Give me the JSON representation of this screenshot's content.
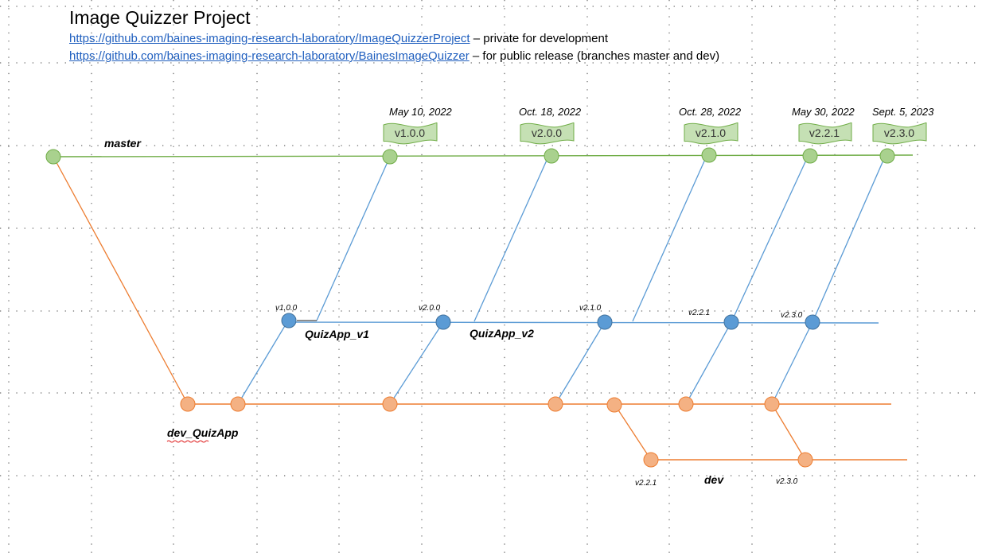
{
  "title": "Image Quizzer Project",
  "links": [
    {
      "url": "https://github.com/baines-imaging-research-laboratory/ImageQuizzerProject",
      "note": " – private for development"
    },
    {
      "url": "https://github.com/baines-imaging-research-laboratory/BainesImageQuizzer",
      "note": " – for public release (branches master and dev)"
    }
  ],
  "colors": {
    "master": "#70ad47",
    "master_fill": "#a9d18e",
    "quizapp": "#5b9bd5",
    "quizapp_fill": "#5b9bd5",
    "dev": "#ed7d31",
    "dev_fill": "#f4b183",
    "tag_fill": "#c5e0b4"
  },
  "branches": {
    "master": "master",
    "dev_quizapp": "dev_QuizApp",
    "quizapp_v1": "QuizApp_v1",
    "quizapp_v2": "QuizApp_v2",
    "dev": "dev"
  },
  "releases": [
    {
      "date": "May 10, 2022",
      "tag": "v1.0.0"
    },
    {
      "date": "Oct. 18, 2022",
      "tag": "v2.0.0"
    },
    {
      "date": "Oct. 28, 2022",
      "tag": "v2.1.0"
    },
    {
      "date": "May 30, 2022",
      "tag": "v2.2.1"
    },
    {
      "date": "Sept. 5, 2023",
      "tag": "v2.3.0"
    }
  ],
  "quizapp_labels": [
    "v1.0.0",
    "v2.0.0",
    "v2.1.0",
    "v2.2.1",
    "v2.3.0"
  ],
  "dev_labels": [
    "v2.2.1",
    "v2.3.0"
  ]
}
